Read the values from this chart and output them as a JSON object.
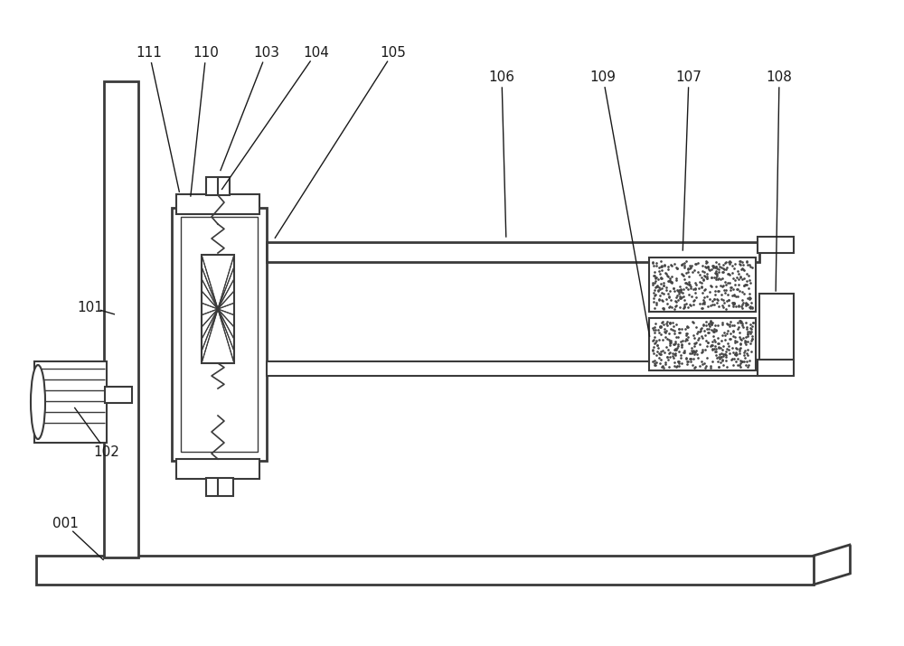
{
  "bg_color": "#ffffff",
  "line_color": "#3a3a3a",
  "lw_thin": 1.0,
  "lw_med": 1.5,
  "lw_thick": 2.0,
  "label_fs": 11,
  "label_color": "#1a1a1a"
}
